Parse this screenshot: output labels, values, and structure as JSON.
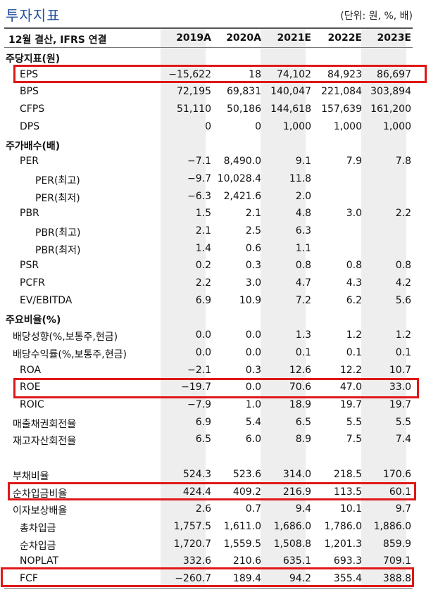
{
  "title": "투자지표",
  "unit": "(단위: 원, %, 배)",
  "header": {
    "label": "12월 결산, IFRS 연결",
    "years": [
      "2019A",
      "2020A",
      "2021E",
      "2022E",
      "2023E"
    ]
  },
  "rows": [
    {
      "label": "주당지표(원)",
      "values": [
        "",
        "",
        "",
        "",
        ""
      ]
    },
    {
      "label": "EPS",
      "values": [
        "−15,622",
        "18",
        "74,102",
        "84,923",
        "86,697"
      ]
    },
    {
      "label": "BPS",
      "values": [
        "72,195",
        "69,831",
        "140,047",
        "221,084",
        "303,894"
      ]
    },
    {
      "label": "CFPS",
      "values": [
        "51,110",
        "50,186",
        "144,618",
        "157,639",
        "161,200"
      ]
    },
    {
      "label": "DPS",
      "values": [
        "0",
        "0",
        "1,000",
        "1,000",
        "1,000"
      ]
    },
    {
      "label": "주가배수(배)",
      "values": [
        "",
        "",
        "",
        "",
        ""
      ]
    },
    {
      "label": "PER",
      "values": [
        "−7.1",
        "8,490.0",
        "9.1",
        "7.9",
        "7.8"
      ]
    },
    {
      "label": "PER(최고)",
      "values": [
        "−9.7",
        "10,028.4",
        "11.8",
        "",
        ""
      ]
    },
    {
      "label": "PER(최저)",
      "values": [
        "−6.3",
        "2,421.6",
        "2.0",
        "",
        ""
      ]
    },
    {
      "label": "PBR",
      "values": [
        "1.5",
        "2.1",
        "4.8",
        "3.0",
        "2.2"
      ]
    },
    {
      "label": "PBR(최고)",
      "values": [
        "2.1",
        "2.5",
        "6.3",
        "",
        ""
      ]
    },
    {
      "label": "PBR(최저)",
      "values": [
        "1.4",
        "0.6",
        "1.1",
        "",
        ""
      ]
    },
    {
      "label": "PSR",
      "values": [
        "0.2",
        "0.3",
        "0.8",
        "0.8",
        "0.8"
      ]
    },
    {
      "label": "PCFR",
      "values": [
        "2.2",
        "3.0",
        "4.7",
        "4.3",
        "4.2"
      ]
    },
    {
      "label": "EV/EBITDA",
      "values": [
        "6.9",
        "10.9",
        "7.2",
        "6.2",
        "5.6"
      ]
    },
    {
      "label": "주요비율(%)",
      "values": [
        "",
        "",
        "",
        "",
        ""
      ]
    },
    {
      "label": "배당성향(%,보통주,현금)",
      "values": [
        "0.0",
        "0.0",
        "1.3",
        "1.2",
        "1.2"
      ]
    },
    {
      "label": "배당수익률(%,보통주,현금)",
      "values": [
        "0.0",
        "0.0",
        "0.1",
        "0.1",
        "0.1"
      ]
    },
    {
      "label": "ROA",
      "values": [
        "−2.1",
        "0.3",
        "12.6",
        "12.2",
        "10.7"
      ]
    },
    {
      "label": "ROE",
      "values": [
        "−19.7",
        "0.0",
        "70.6",
        "47.0",
        "33.0"
      ]
    },
    {
      "label": "ROIC",
      "values": [
        "−7.9",
        "1.0",
        "18.9",
        "19.7",
        "19.7"
      ]
    },
    {
      "label": "매출채권회전율",
      "values": [
        "6.9",
        "5.4",
        "6.5",
        "5.5",
        "5.5"
      ]
    },
    {
      "label": "재고자산회전율",
      "values": [
        "6.5",
        "6.0",
        "8.9",
        "7.5",
        "7.4"
      ]
    },
    {
      "label": "",
      "values": [
        "",
        "",
        "",
        "",
        ""
      ]
    },
    {
      "label": "부채비율",
      "values": [
        "524.3",
        "523.6",
        "314.0",
        "218.5",
        "170.6"
      ]
    },
    {
      "label": "순차입금비율",
      "values": [
        "424.4",
        "409.2",
        "216.9",
        "113.5",
        "60.1"
      ]
    },
    {
      "label": "이자보상배율",
      "values": [
        "2.6",
        "0.7",
        "9.4",
        "10.1",
        "9.7"
      ]
    },
    {
      "label": "총차입금",
      "values": [
        "1,757.5",
        "1,611.0",
        "1,686.0",
        "1,786.0",
        "1,886.0"
      ]
    },
    {
      "label": "순차입금",
      "values": [
        "1,720.7",
        "1,559.5",
        "1,508.8",
        "1,201.3",
        "859.9"
      ]
    },
    {
      "label": "NOPLAT",
      "values": [
        "332.6",
        "210.6",
        "635.1",
        "693.3",
        "709.1"
      ]
    },
    {
      "label": "FCF",
      "values": [
        "−260.7",
        "189.4",
        "94.2",
        "355.4",
        "388.8"
      ]
    }
  ],
  "highlight_color": "#e01818"
}
